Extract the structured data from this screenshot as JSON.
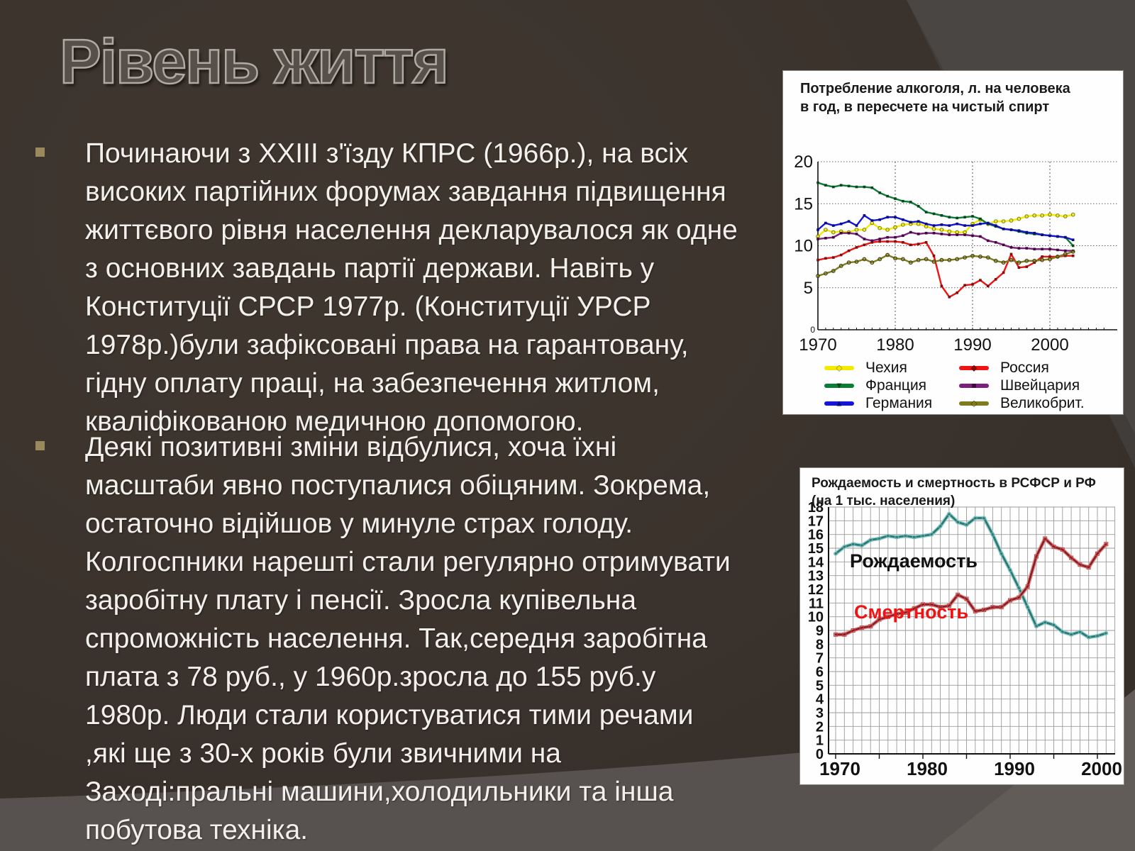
{
  "slide": {
    "title": "Рівень життя",
    "bullets": [
      {
        "lines": [
          "Починаючи з XXIII з'їзду КПРС (1966р.), на всіх",
          "високих партійних форумах завдання підвищення",
          "життєвого рівня населення декларувалося як одне",
          "з основних завдань партії держави. Навіть у",
          "Конституції СРСР 1977р. (Конституції УРСР",
          "1978р.)були зафіксовані права на гарантовану,",
          "гідну оплату праці, на забезпечення житлом,",
          "кваліфікованою медичною допомогою."
        ]
      },
      {
        "lines": [
          "Деякі позитивні зміни відбулися, хоча їхні",
          "масштаби явно поступалися обіцяним. Зокрема,",
          "остаточно відійшов у минуле страх голоду.",
          "Колгоспники нарешті стали регулярно отримувати",
          "заробітну плату і пенсії. Зросла купівельна",
          "спроможність населення. Так,середня заробітна",
          "плата з 78 руб., у 1960р.зросла до 155 руб.у",
          "1980р. Люди стали користуватися тими речами",
          ",які ще з 30-х років були звичними на",
          "Заході:пральні машини,холодильники та інша",
          "побутова техніка."
        ]
      }
    ],
    "colors": {
      "background": "#3a322c",
      "bottom_band": "#575150",
      "corner_wedge": "#4a4643",
      "bullet_marker": "#99895b",
      "body_text": "#f3f0ec",
      "title_outline": "#b0aaa3"
    }
  },
  "chart_data": [
    {
      "type": "line",
      "title_lines": [
        "Потребление алкоголя, л. на человека",
        "в год, в пересчете на чистый спирт"
      ],
      "x_start": 1970,
      "x": [
        1970,
        1971,
        1972,
        1973,
        1974,
        1975,
        1976,
        1977,
        1978,
        1979,
        1980,
        1981,
        1982,
        1983,
        1984,
        1985,
        1986,
        1987,
        1988,
        1989,
        1990,
        1991,
        1992,
        1993,
        1994,
        1995,
        1996,
        1997,
        1998,
        1999,
        2000,
        2001,
        2002,
        2003
      ],
      "ylim": [
        0,
        20
      ],
      "yticks": [
        0,
        5,
        10,
        15,
        20
      ],
      "xticks": [
        1970,
        1980,
        1990,
        2000
      ],
      "grid": "dotted",
      "legend_position": "bottom-two-columns",
      "series": [
        {
          "name": "Чехия",
          "color": "#f4ea00",
          "marker_color": "#8a8a00",
          "marker": "diamond-open",
          "values": [
            11.1,
            11.9,
            11.6,
            11.7,
            11.6,
            11.9,
            11.9,
            12.7,
            12.1,
            11.9,
            12.2,
            12.5,
            12.6,
            12.6,
            12.3,
            12.0,
            11.9,
            11.7,
            11.6,
            11.6,
            12.6,
            13.1,
            12.6,
            12.9,
            12.9,
            13.0,
            13.2,
            13.5,
            13.6,
            13.6,
            13.7,
            13.6,
            13.5,
            13.7
          ]
        },
        {
          "name": "Франция",
          "color": "#0c7d35",
          "marker_color": "#06451d",
          "marker": "triangle-down",
          "values": [
            17.5,
            17.2,
            17.0,
            17.2,
            17.1,
            17.0,
            17.0,
            16.9,
            16.3,
            15.9,
            15.6,
            15.3,
            15.2,
            14.7,
            14.0,
            13.8,
            13.6,
            13.4,
            13.3,
            13.4,
            13.5,
            13.2,
            12.6,
            12.3,
            12.0,
            11.9,
            11.7,
            11.5,
            11.4,
            11.3,
            11.2,
            11.1,
            11.0,
            10.0
          ]
        },
        {
          "name": "Германия",
          "color": "#1515d6",
          "marker_color": "#0a0a7a",
          "marker": "triangle-up",
          "values": [
            11.9,
            12.7,
            12.4,
            12.6,
            12.9,
            12.4,
            13.6,
            13.0,
            13.1,
            13.4,
            13.4,
            13.1,
            12.8,
            12.9,
            12.6,
            12.4,
            12.5,
            12.4,
            12.6,
            12.4,
            12.4,
            12.6,
            12.7,
            12.4,
            12.0,
            11.9,
            11.8,
            11.6,
            11.5,
            11.3,
            11.2,
            11.1,
            11.0,
            10.7
          ]
        },
        {
          "name": "Россия",
          "color": "#ef1414",
          "marker_color": "#7e0d0d",
          "marker": "diamond",
          "values": [
            8.3,
            8.5,
            8.6,
            8.9,
            9.4,
            9.8,
            10.1,
            10.4,
            10.5,
            10.5,
            10.5,
            10.4,
            10.1,
            10.2,
            10.4,
            8.8,
            5.2,
            3.9,
            4.4,
            5.3,
            5.4,
            5.9,
            5.2,
            6.0,
            6.8,
            9.0,
            7.4,
            7.5,
            8.0,
            8.7,
            8.7,
            8.7,
            8.8,
            8.8
          ]
        },
        {
          "name": "Швейцария",
          "color": "#7d1f7d",
          "marker_color": "#3c0b3c",
          "marker": "square-open",
          "values": [
            10.8,
            10.9,
            11.0,
            11.5,
            11.5,
            11.4,
            10.8,
            10.6,
            10.8,
            11.0,
            11.0,
            11.2,
            11.6,
            11.4,
            11.5,
            11.5,
            11.4,
            11.3,
            11.3,
            11.3,
            11.2,
            11.1,
            10.6,
            10.4,
            10.1,
            9.8,
            9.7,
            9.7,
            9.6,
            9.6,
            9.6,
            9.5,
            9.4,
            9.4
          ]
        },
        {
          "name": "Великобрит.",
          "color": "#7e7c1e",
          "marker_color": "#46440d",
          "marker": "diamond-open",
          "values": [
            6.4,
            6.7,
            7.0,
            7.6,
            8.0,
            8.1,
            8.4,
            8.0,
            8.4,
            8.9,
            8.5,
            8.4,
            8.0,
            8.3,
            8.4,
            8.1,
            8.3,
            8.3,
            8.4,
            8.6,
            8.8,
            8.7,
            8.6,
            8.2,
            8.0,
            8.3,
            8.0,
            8.2,
            8.2,
            8.3,
            8.4,
            8.7,
            9.0,
            9.3
          ]
        }
      ]
    },
    {
      "type": "line",
      "title_lines": [
        "Рождаемость и смертность в РСФСР и РФ",
        "(на 1 тыс. населения)"
      ],
      "x_start": 1970,
      "x": [
        1970,
        1971,
        1972,
        1973,
        1974,
        1975,
        1976,
        1977,
        1978,
        1979,
        1980,
        1981,
        1982,
        1983,
        1984,
        1985,
        1986,
        1987,
        1988,
        1989,
        1990,
        1991,
        1992,
        1993,
        1994,
        1995,
        1996,
        1997,
        1998,
        1999,
        2000,
        2001
      ],
      "ylim": [
        0,
        18
      ],
      "yticks": [
        0,
        1,
        2,
        3,
        4,
        5,
        6,
        7,
        8,
        9,
        10,
        11,
        12,
        13,
        14,
        15,
        16,
        17,
        18
      ],
      "xticks": [
        1970,
        1980,
        1990,
        2000
      ],
      "grid": "full-graph-paper",
      "series": [
        {
          "name": "Рождаемость",
          "color": "#2c7a77",
          "halo_color": "#9fd2cf",
          "label_color": "#111111",
          "values": [
            14.6,
            15.1,
            15.3,
            15.2,
            15.6,
            15.7,
            15.9,
            15.8,
            15.9,
            15.8,
            15.9,
            16.0,
            16.6,
            17.5,
            16.9,
            16.7,
            17.2,
            17.2,
            16.0,
            14.6,
            13.4,
            12.1,
            10.7,
            9.3,
            9.6,
            9.4,
            8.9,
            8.7,
            8.9,
            8.5,
            8.6,
            8.8
          ]
        },
        {
          "name": "Смертность",
          "color": "#8c1e26",
          "halo_color": "#dc9090",
          "label_color": "#ee1414",
          "values": [
            8.7,
            8.7,
            9.0,
            9.2,
            9.3,
            9.8,
            10.0,
            10.2,
            10.3,
            10.6,
            10.9,
            10.9,
            10.7,
            10.8,
            11.6,
            11.3,
            10.4,
            10.5,
            10.7,
            10.7,
            11.2,
            11.4,
            12.2,
            14.4,
            15.7,
            15.1,
            14.9,
            14.3,
            13.8,
            13.6,
            14.6,
            15.3
          ]
        }
      ]
    }
  ]
}
